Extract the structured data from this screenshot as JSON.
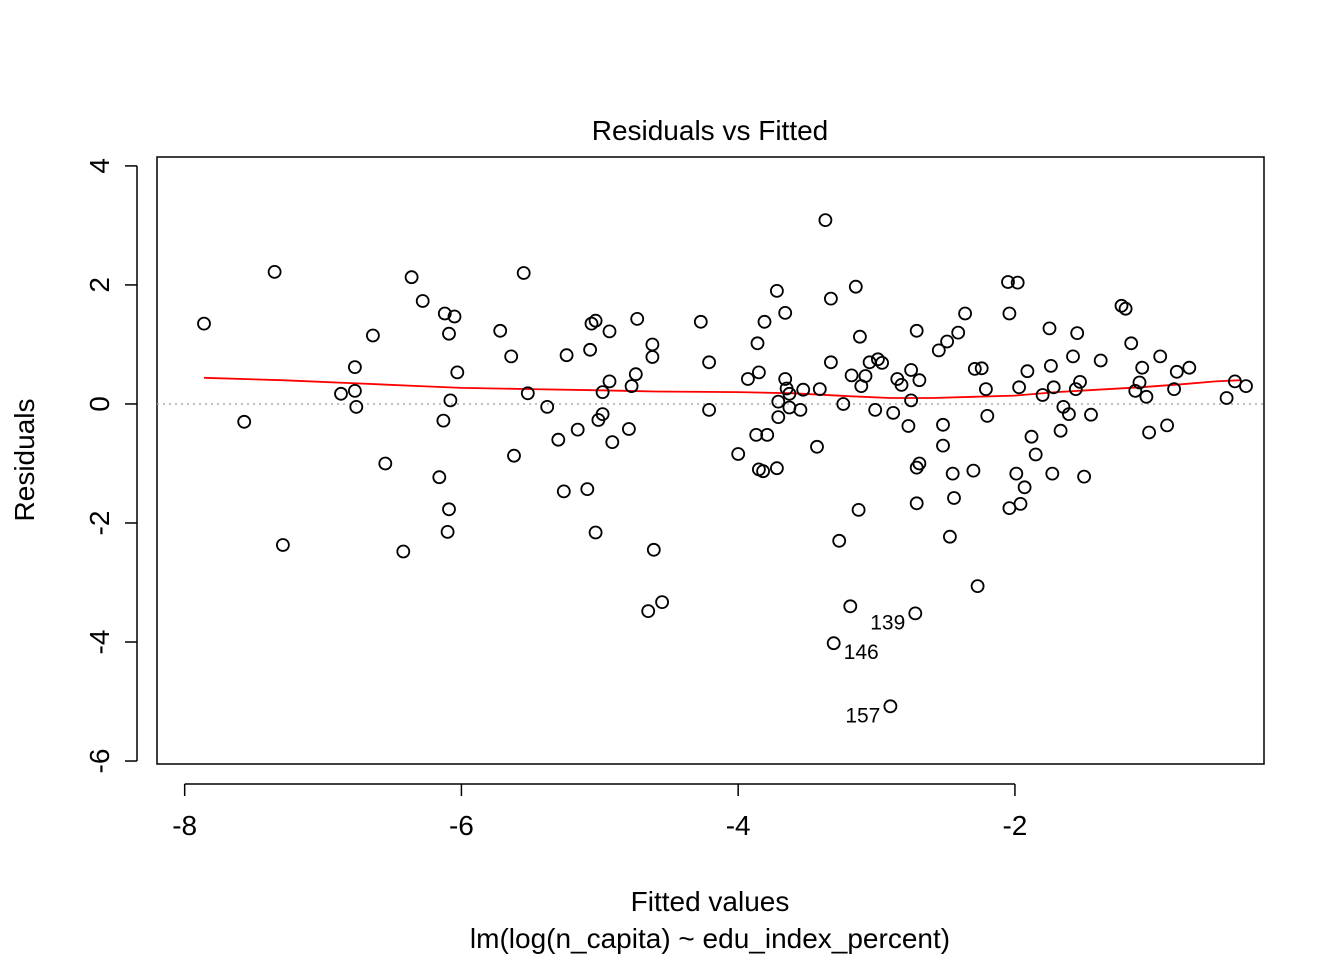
{
  "chart_data": {
    "type": "scatter",
    "title": "Residuals vs Fitted",
    "xlabel": "Fitted values",
    "subtitle": "lm(log(n_capita) ~ edu_index_percent)",
    "ylabel": "Residuals",
    "xlim": [
      -8.2,
      -0.2
    ],
    "ylim": [
      -6.05,
      4.15
    ],
    "x_ticks": [
      -8,
      -6,
      -4,
      -2
    ],
    "y_ticks": [
      -6,
      -4,
      -2,
      0,
      2,
      4
    ],
    "x_tick_labels": [
      "-8",
      "-6",
      "-4",
      "-2"
    ],
    "y_tick_labels": [
      "-6",
      "-4",
      "-2",
      "0",
      "2",
      "4"
    ],
    "reference_line": {
      "y": 0,
      "color": "#aaaaaa",
      "style": "dotted"
    },
    "smooth_color": "#ff0000",
    "point_color": "#000000",
    "smooth": [
      [
        -7.86,
        0.44
      ],
      [
        -7.3,
        0.4
      ],
      [
        -6.8,
        0.35
      ],
      [
        -6.3,
        0.3
      ],
      [
        -6.0,
        0.27
      ],
      [
        -5.5,
        0.25
      ],
      [
        -5.0,
        0.23
      ],
      [
        -4.6,
        0.21
      ],
      [
        -4.0,
        0.2
      ],
      [
        -3.6,
        0.18
      ],
      [
        -3.2,
        0.13
      ],
      [
        -2.9,
        0.1
      ],
      [
        -2.6,
        0.1
      ],
      [
        -2.3,
        0.12
      ],
      [
        -2.0,
        0.14
      ],
      [
        -1.7,
        0.2
      ],
      [
        -1.4,
        0.24
      ],
      [
        -1.1,
        0.28
      ],
      [
        -0.8,
        0.33
      ],
      [
        -0.55,
        0.38
      ],
      [
        -0.37,
        0.4
      ]
    ],
    "points": [
      [
        -7.86,
        1.35
      ],
      [
        -7.57,
        -0.3
      ],
      [
        -7.35,
        2.22
      ],
      [
        -7.29,
        -2.37
      ],
      [
        -6.87,
        0.17
      ],
      [
        -6.77,
        0.62
      ],
      [
        -6.77,
        0.22
      ],
      [
        -6.76,
        -0.05
      ],
      [
        -6.64,
        1.15
      ],
      [
        -6.55,
        -1.0
      ],
      [
        -6.42,
        -2.48
      ],
      [
        -6.36,
        2.13
      ],
      [
        -6.28,
        1.73
      ],
      [
        -6.16,
        -1.23
      ],
      [
        -6.12,
        1.52
      ],
      [
        -6.13,
        -0.28
      ],
      [
        -6.09,
        1.18
      ],
      [
        -6.09,
        -1.77
      ],
      [
        -6.1,
        -2.15
      ],
      [
        -6.08,
        0.06
      ],
      [
        -6.05,
        1.47
      ],
      [
        -6.03,
        0.53
      ],
      [
        -5.72,
        1.23
      ],
      [
        -5.64,
        0.8
      ],
      [
        -5.62,
        -0.87
      ],
      [
        -5.55,
        2.2
      ],
      [
        -5.52,
        0.18
      ],
      [
        -5.38,
        -0.05
      ],
      [
        -5.3,
        -0.6
      ],
      [
        -5.26,
        -1.47
      ],
      [
        -5.24,
        0.82
      ],
      [
        -5.16,
        -0.43
      ],
      [
        -5.09,
        -1.43
      ],
      [
        -5.07,
        0.91
      ],
      [
        -5.06,
        1.35
      ],
      [
        -5.03,
        1.4
      ],
      [
        -5.03,
        -2.16
      ],
      [
        -5.01,
        -0.27
      ],
      [
        -4.98,
        0.2
      ],
      [
        -4.98,
        -0.17
      ],
      [
        -4.93,
        1.22
      ],
      [
        -4.93,
        0.38
      ],
      [
        -4.91,
        -0.64
      ],
      [
        -4.79,
        -0.42
      ],
      [
        -4.77,
        0.3
      ],
      [
        -4.73,
        1.43
      ],
      [
        -4.74,
        0.5
      ],
      [
        -4.65,
        -3.48
      ],
      [
        -4.62,
        0.79
      ],
      [
        -4.62,
        1.0
      ],
      [
        -4.61,
        -2.45
      ],
      [
        -4.55,
        -3.33
      ],
      [
        -4.27,
        1.38
      ],
      [
        -4.21,
        -0.1
      ],
      [
        -4.21,
        0.7
      ],
      [
        -4.0,
        -0.84
      ],
      [
        -3.93,
        0.42
      ],
      [
        -3.87,
        -0.52
      ],
      [
        -3.86,
        1.02
      ],
      [
        -3.85,
        0.53
      ],
      [
        -3.85,
        -1.1
      ],
      [
        -3.82,
        -1.13
      ],
      [
        -3.81,
        1.38
      ],
      [
        -3.79,
        -0.52
      ],
      [
        -3.72,
        -1.08
      ],
      [
        -3.72,
        1.9
      ],
      [
        -3.71,
        0.04
      ],
      [
        -3.71,
        -0.22
      ],
      [
        -3.66,
        0.42
      ],
      [
        -3.66,
        1.53
      ],
      [
        -3.65,
        0.26
      ],
      [
        -3.63,
        -0.06
      ],
      [
        -3.63,
        0.17
      ],
      [
        -3.55,
        -0.1
      ],
      [
        -3.53,
        0.24
      ],
      [
        -3.43,
        -0.72
      ],
      [
        -3.41,
        0.25
      ],
      [
        -3.37,
        3.09
      ],
      [
        -3.33,
        0.7
      ],
      [
        -3.33,
        1.77
      ],
      [
        -3.31,
        -4.02
      ],
      [
        -3.27,
        -2.3
      ],
      [
        -3.24,
        0.0
      ],
      [
        -3.19,
        -3.4
      ],
      [
        -3.18,
        0.48
      ],
      [
        -3.15,
        1.97
      ],
      [
        -3.13,
        -1.78
      ],
      [
        -3.12,
        1.13
      ],
      [
        -3.11,
        0.3
      ],
      [
        -3.08,
        0.47
      ],
      [
        -3.05,
        0.7
      ],
      [
        -3.01,
        -0.1
      ],
      [
        -2.99,
        0.75
      ],
      [
        -2.96,
        0.69
      ],
      [
        -2.88,
        -0.15
      ],
      [
        -2.9,
        -5.08
      ],
      [
        -2.85,
        0.42
      ],
      [
        -2.82,
        0.32
      ],
      [
        -2.75,
        0.57
      ],
      [
        -2.75,
        0.06
      ],
      [
        -2.77,
        -0.37
      ],
      [
        -2.71,
        1.23
      ],
      [
        -2.71,
        -1.07
      ],
      [
        -2.71,
        -1.67
      ],
      [
        -2.72,
        -3.52
      ],
      [
        -2.69,
        -1.0
      ],
      [
        -2.69,
        0.4
      ],
      [
        -2.55,
        0.9
      ],
      [
        -2.52,
        -0.35
      ],
      [
        -2.52,
        -0.7
      ],
      [
        -2.49,
        1.05
      ],
      [
        -2.47,
        -2.23
      ],
      [
        -2.45,
        -1.17
      ],
      [
        -2.44,
        -1.58
      ],
      [
        -2.41,
        1.2
      ],
      [
        -2.36,
        1.52
      ],
      [
        -2.3,
        -1.12
      ],
      [
        -2.29,
        0.59
      ],
      [
        -2.27,
        -3.06
      ],
      [
        -2.24,
        0.6
      ],
      [
        -2.21,
        0.25
      ],
      [
        -2.2,
        -0.2
      ],
      [
        -2.05,
        2.05
      ],
      [
        -2.04,
        1.52
      ],
      [
        -2.04,
        -1.75
      ],
      [
        -1.98,
        2.04
      ],
      [
        -1.99,
        -1.17
      ],
      [
        -1.97,
        0.28
      ],
      [
        -1.96,
        -1.68
      ],
      [
        -1.93,
        -1.4
      ],
      [
        -1.91,
        0.55
      ],
      [
        -1.88,
        -0.55
      ],
      [
        -1.85,
        -0.85
      ],
      [
        -1.8,
        0.15
      ],
      [
        -1.75,
        1.27
      ],
      [
        -1.74,
        0.64
      ],
      [
        -1.73,
        -1.17
      ],
      [
        -1.72,
        0.28
      ],
      [
        -1.67,
        -0.45
      ],
      [
        -1.65,
        -0.05
      ],
      [
        -1.61,
        -0.17
      ],
      [
        -1.58,
        0.8
      ],
      [
        -1.56,
        0.25
      ],
      [
        -1.55,
        1.19
      ],
      [
        -1.53,
        0.37
      ],
      [
        -1.5,
        -1.22
      ],
      [
        -1.45,
        -0.18
      ],
      [
        -1.38,
        0.73
      ],
      [
        -1.23,
        1.65
      ],
      [
        -1.2,
        1.6
      ],
      [
        -1.16,
        1.02
      ],
      [
        -1.13,
        0.22
      ],
      [
        -1.1,
        0.36
      ],
      [
        -1.08,
        0.61
      ],
      [
        -1.05,
        0.12
      ],
      [
        -1.03,
        -0.48
      ],
      [
        -0.95,
        0.8
      ],
      [
        -0.9,
        -0.36
      ],
      [
        -0.85,
        0.25
      ],
      [
        -0.83,
        0.54
      ],
      [
        -0.74,
        0.61
      ],
      [
        -0.47,
        0.1
      ],
      [
        -0.41,
        0.38
      ],
      [
        -0.33,
        0.3
      ]
    ],
    "labeled_points": [
      {
        "label": "139",
        "x": -2.72,
        "y": -3.52,
        "side": "left"
      },
      {
        "label": "146",
        "x": -3.31,
        "y": -4.02,
        "side": "right"
      },
      {
        "label": "157",
        "x": -2.9,
        "y": -5.08,
        "side": "left"
      }
    ]
  }
}
